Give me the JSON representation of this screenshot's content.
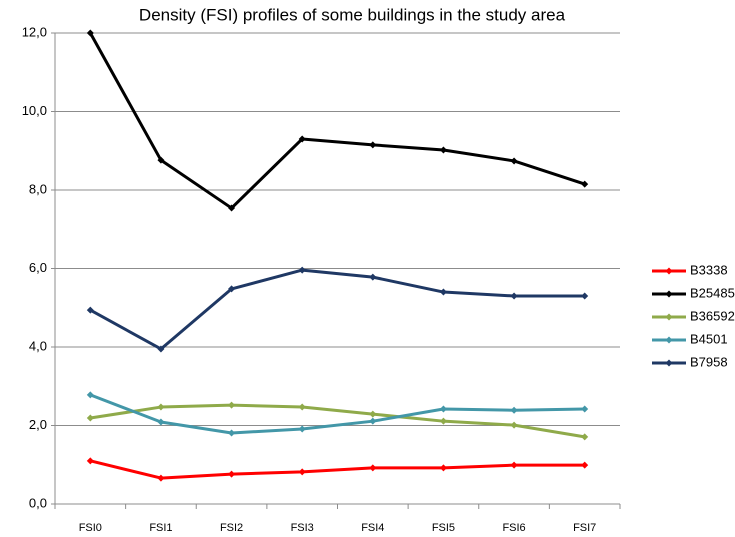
{
  "chart_data": {
    "type": "line",
    "title": "Density (FSI) profiles of some buildings in the study area",
    "categories": [
      "FSI0",
      "FSI1",
      "FSI2",
      "FSI3",
      "FSI4",
      "FSI5",
      "FSI6",
      "FSI7"
    ],
    "series": [
      {
        "name": "B3338",
        "color": "#ff0000",
        "values": [
          1.1,
          0.66,
          0.76,
          0.82,
          0.92,
          0.92,
          0.99,
          0.99
        ]
      },
      {
        "name": "B25485",
        "color": "#000000",
        "values": [
          12.0,
          8.76,
          7.54,
          9.3,
          9.15,
          9.02,
          8.74,
          8.15
        ]
      },
      {
        "name": "B36592",
        "color": "#8faa4a",
        "values": [
          2.19,
          2.47,
          2.52,
          2.47,
          2.29,
          2.11,
          2.01,
          1.71
        ]
      },
      {
        "name": "B4501",
        "color": "#4397a8",
        "values": [
          2.78,
          2.09,
          1.81,
          1.91,
          2.11,
          2.42,
          2.39,
          2.42
        ]
      },
      {
        "name": "B7958",
        "color": "#1f3864",
        "values": [
          4.94,
          3.95,
          5.48,
          5.96,
          5.78,
          5.4,
          5.3,
          5.3
        ]
      }
    ],
    "ylim": [
      0,
      12
    ],
    "yticks": [
      {
        "value": 0,
        "label": "0,0"
      },
      {
        "value": 2,
        "label": "2,0"
      },
      {
        "value": 4,
        "label": "4,0"
      },
      {
        "value": 6,
        "label": "6,0"
      },
      {
        "value": 8,
        "label": "8,0"
      },
      {
        "value": 10,
        "label": "10,0"
      },
      {
        "value": 12,
        "label": "12,0"
      }
    ],
    "grid": true,
    "legend": "right"
  }
}
